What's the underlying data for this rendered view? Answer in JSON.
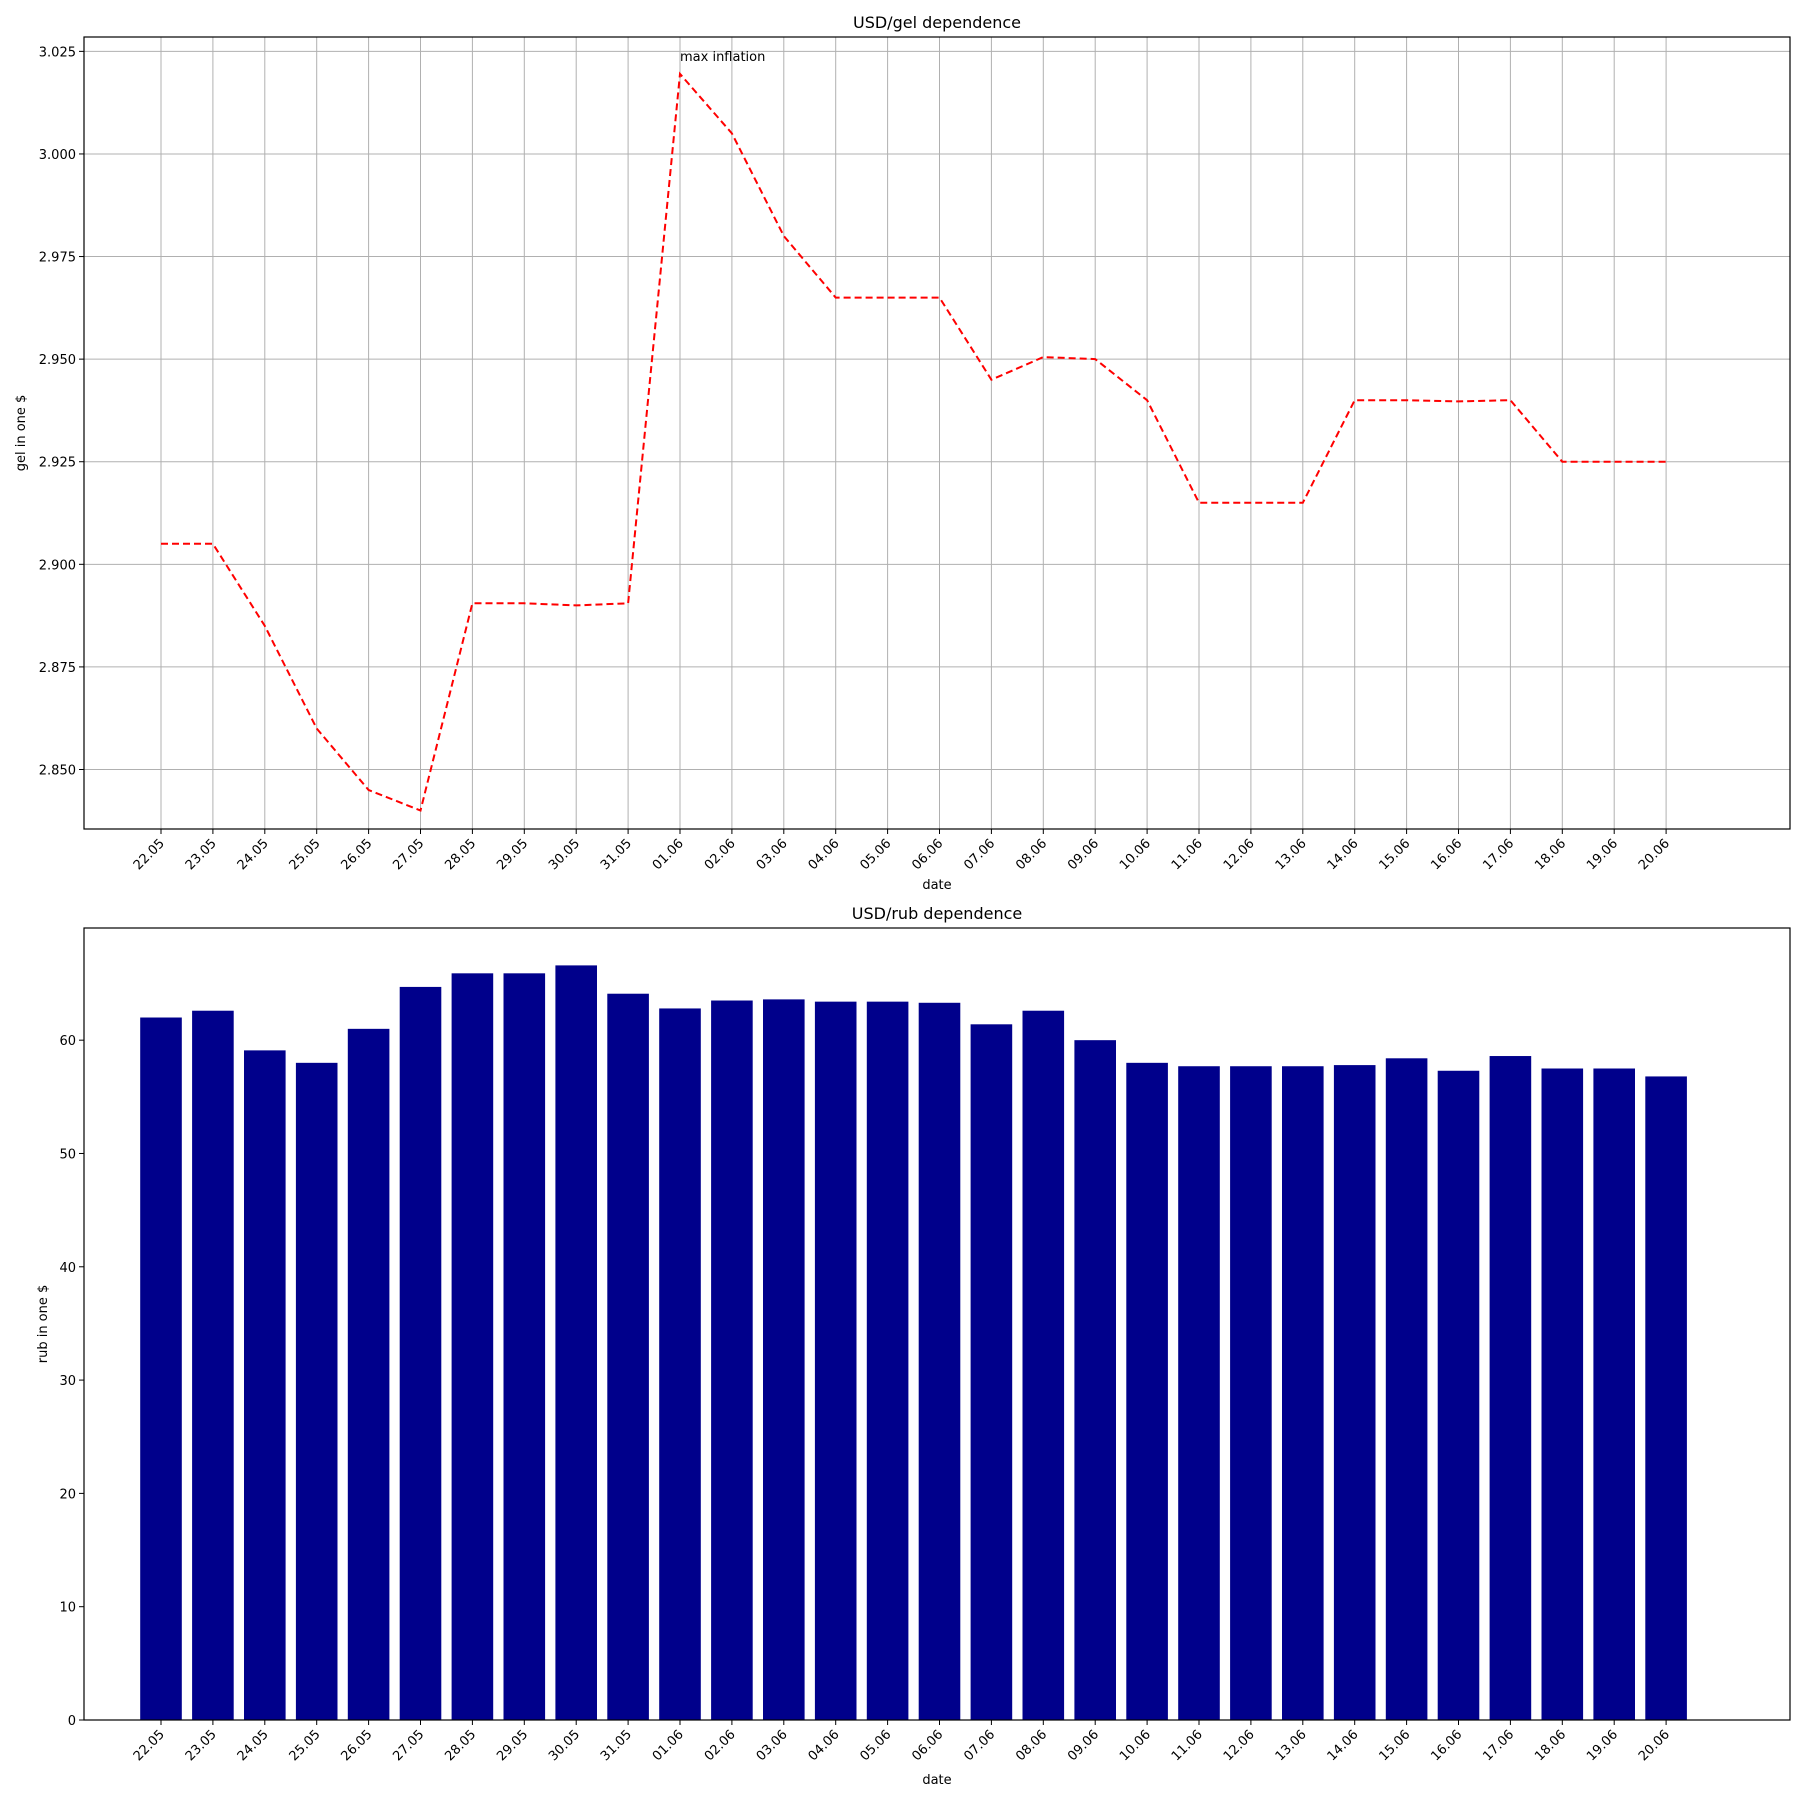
{
  "chart_data": [
    {
      "type": "line",
      "title": "USD/gel dependence",
      "xlabel": "date",
      "ylabel": "gel in one $",
      "grid": true,
      "line_style": "dashed",
      "line_color": "#ff0000",
      "x": [
        "22.05",
        "23.05",
        "24.05",
        "25.05",
        "26.05",
        "27.05",
        "28.05",
        "29.05",
        "30.05",
        "31.05",
        "01.06",
        "02.06",
        "03.06",
        "04.06",
        "05.06",
        "06.06",
        "07.06",
        "08.06",
        "09.06",
        "10.06",
        "11.06",
        "12.06",
        "13.06",
        "14.06",
        "15.06",
        "16.06",
        "17.06",
        "18.06",
        "19.06",
        "20.06"
      ],
      "values": [
        2.905,
        2.905,
        2.885,
        2.86,
        2.845,
        2.84,
        2.8905,
        2.8905,
        2.89,
        2.8905,
        3.0195,
        3.005,
        2.98,
        2.965,
        2.965,
        2.965,
        2.945,
        2.9505,
        2.95,
        2.94,
        2.915,
        2.915,
        2.915,
        2.94,
        2.94,
        2.9397,
        2.94,
        2.925,
        2.925,
        2.925
      ],
      "ylim": [
        2.8355,
        3.0285
      ],
      "yticks": [
        "2.850",
        "2.875",
        "2.900",
        "2.925",
        "2.950",
        "2.975",
        "3.000",
        "3.025"
      ],
      "annotation": {
        "text": "max inflation",
        "x": "01.06",
        "y": 3.0195
      }
    },
    {
      "type": "bar",
      "title": "USD/rub dependence",
      "xlabel": "date",
      "ylabel": "rub in one $",
      "grid": false,
      "bar_color": "#00008b",
      "categories": [
        "22.05",
        "23.05",
        "24.05",
        "25.05",
        "26.05",
        "27.05",
        "28.05",
        "29.05",
        "30.05",
        "31.05",
        "01.06",
        "02.06",
        "03.06",
        "04.06",
        "05.06",
        "06.06",
        "07.06",
        "08.06",
        "09.06",
        "10.06",
        "11.06",
        "12.06",
        "13.06",
        "14.06",
        "15.06",
        "16.06",
        "17.06",
        "18.06",
        "19.06",
        "20.06"
      ],
      "values": [
        62.0,
        62.6,
        59.1,
        58.0,
        61.0,
        64.7,
        65.9,
        65.9,
        66.6,
        64.1,
        62.8,
        63.5,
        63.6,
        63.4,
        63.4,
        63.3,
        61.4,
        62.6,
        60.0,
        58.0,
        57.7,
        57.7,
        57.7,
        57.8,
        58.4,
        57.3,
        58.6,
        57.5,
        57.5,
        56.8
      ],
      "ylim": [
        0,
        69.9
      ],
      "yticks": [
        "0",
        "10",
        "20",
        "30",
        "40",
        "50",
        "60"
      ]
    }
  ]
}
